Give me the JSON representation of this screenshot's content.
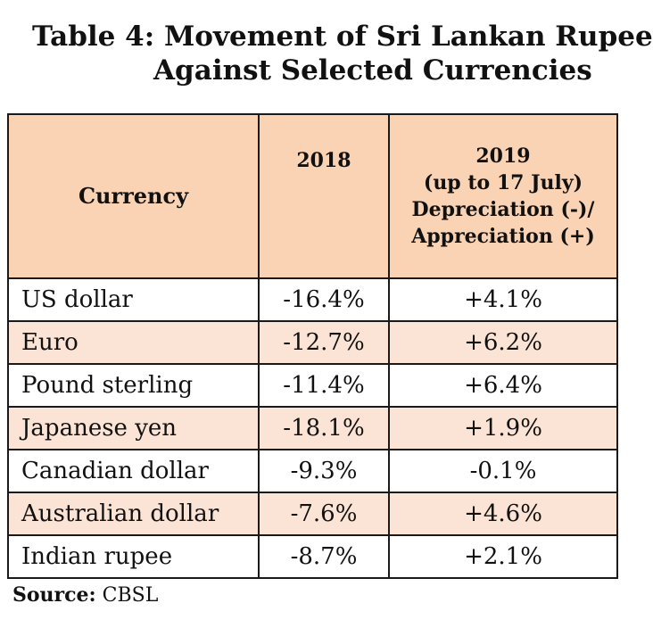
{
  "title": {
    "line1": "Table 4:  Movement of Sri Lankan Rupee",
    "line2": "Against Selected Currencies"
  },
  "table": {
    "headers": {
      "currency": "Currency",
      "y2018": "2018",
      "y2019_line1": "2019",
      "y2019_line2": "(up to 17 July)",
      "y2019_line3": "Depreciation (-)/",
      "y2019_line4": "Appreciation (+)"
    },
    "rows": [
      {
        "currency": "US dollar",
        "y2018": "-16.4%",
        "y2019": "+4.1%"
      },
      {
        "currency": "Euro",
        "y2018": "-12.7%",
        "y2019": "+6.2%"
      },
      {
        "currency": "Pound sterling",
        "y2018": "-11.4%",
        "y2019": "+6.4%"
      },
      {
        "currency": "Japanese yen",
        "y2018": "-18.1%",
        "y2019": "+1.9%"
      },
      {
        "currency": "Canadian dollar",
        "y2018": "-9.3%",
        "y2019": "-0.1%"
      },
      {
        "currency": "Australian dollar",
        "y2018": "-7.6%",
        "y2019": "+4.6%"
      },
      {
        "currency": "Indian rupee",
        "y2018": "-8.7%",
        "y2019": "+2.1%"
      }
    ]
  },
  "source": {
    "label": "Source:",
    "value": " CBSL"
  },
  "colors": {
    "header_bg": "#f9d3b4",
    "alt_row_bg": "#fbe4d5"
  }
}
